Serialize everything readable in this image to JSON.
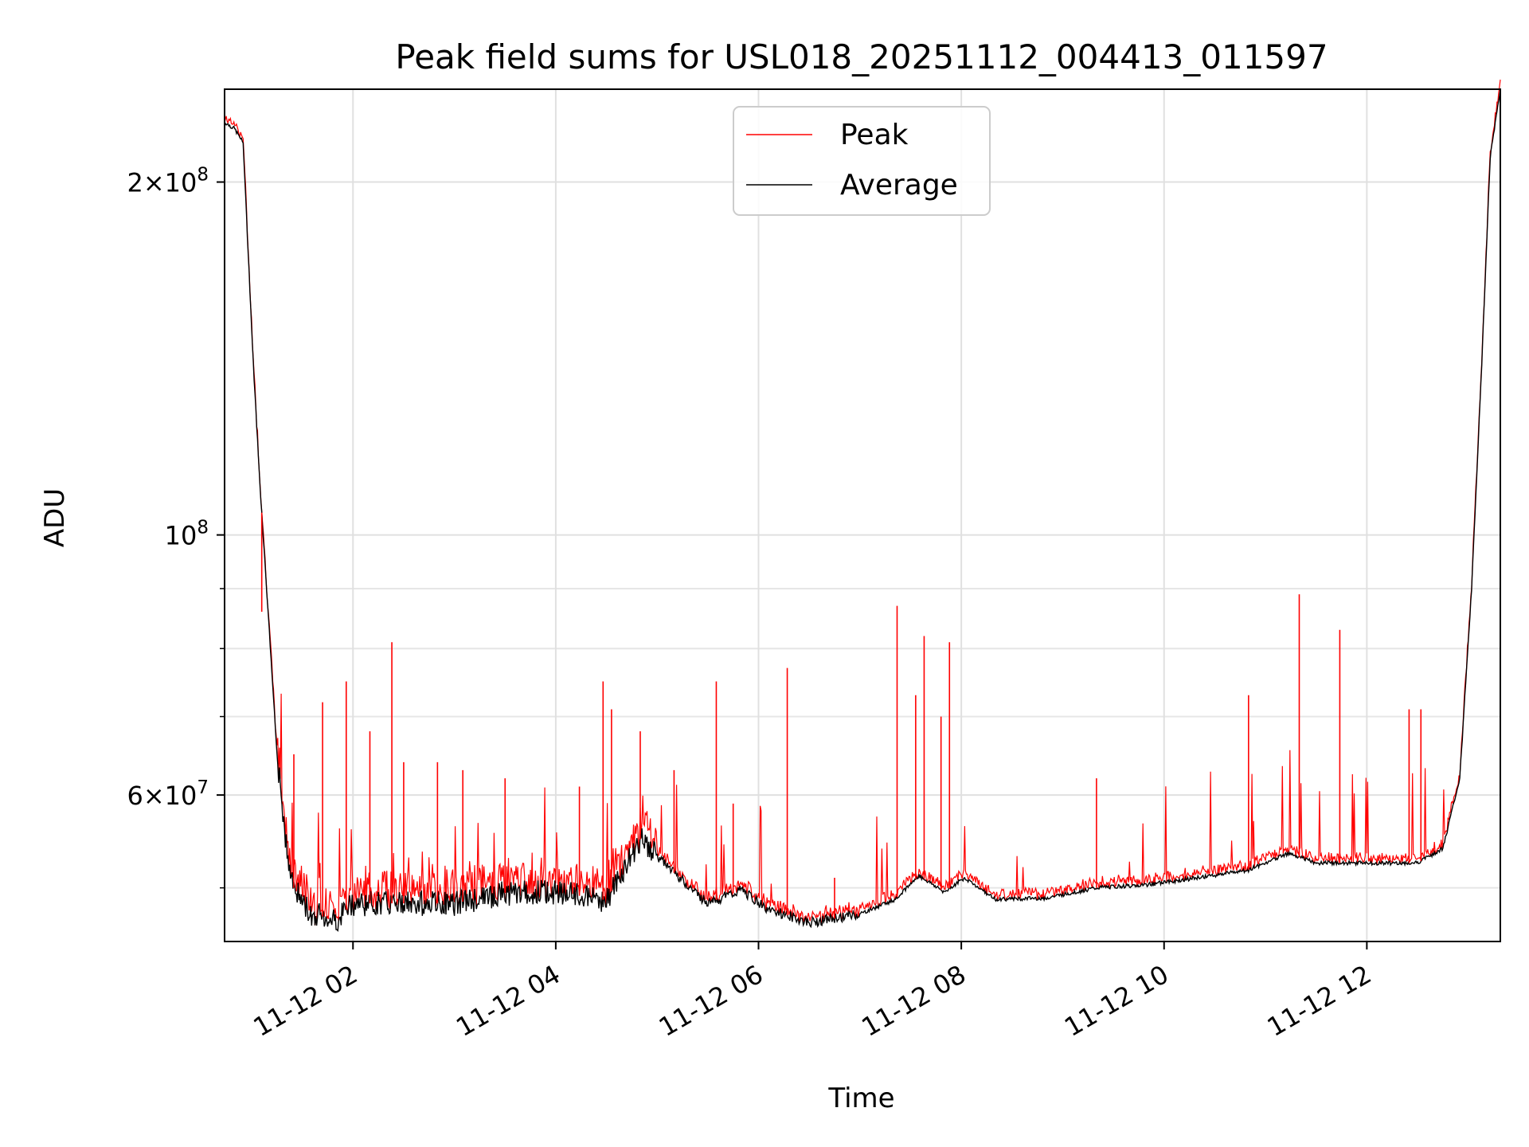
{
  "chart_data": {
    "type": "line",
    "title": "Peak field sums for USL018_20251112_004413_011597",
    "xlabel": "Time",
    "ylabel": "ADU",
    "y_scale": "log",
    "xlim": [
      "2025-11-12 00:44",
      "2025-11-12 13:19"
    ],
    "ylim": [
      45000000,
      240000000
    ],
    "x_ticks": [
      "11-12 02",
      "11-12 04",
      "11-12 06",
      "11-12 08",
      "11-12 10",
      "11-12 12"
    ],
    "y_ticks": [
      {
        "base": "2",
        "exp": "8",
        "value": 200000000
      },
      {
        "base": "",
        "exp": "8",
        "value": 100000000
      },
      {
        "base": "6",
        "exp": "7",
        "value": 60000000
      }
    ],
    "grid": true,
    "legend": {
      "position": "upper center"
    },
    "series": [
      {
        "name": "Average",
        "color": "#000000",
        "points": [
          [
            "2025-11-12 00:44",
            225000000
          ],
          [
            "2025-11-12 00:50",
            222000000
          ],
          [
            "2025-11-12 00:55",
            216000000
          ],
          [
            "2025-11-12 01:01",
            140000000
          ],
          [
            "2025-11-12 01:05",
            110000000
          ],
          [
            "2025-11-12 01:10",
            85000000
          ],
          [
            "2025-11-12 01:15",
            65000000
          ],
          [
            "2025-11-12 01:20",
            55000000
          ],
          [
            "2025-11-12 01:25",
            50000000
          ],
          [
            "2025-11-12 01:35",
            47500000
          ],
          [
            "2025-11-12 01:50",
            47000000
          ],
          [
            "2025-11-12 02:00",
            48500000
          ],
          [
            "2025-11-12 02:30",
            48500000
          ],
          [
            "2025-11-12 03:00",
            48500000
          ],
          [
            "2025-11-12 03:30",
            49500000
          ],
          [
            "2025-11-12 04:00",
            49600000
          ],
          [
            "2025-11-12 04:30",
            48800000
          ],
          [
            "2025-11-12 04:50",
            55000000
          ],
          [
            "2025-11-12 05:10",
            51500000
          ],
          [
            "2025-11-12 05:30",
            48500000
          ],
          [
            "2025-11-12 05:50",
            49800000
          ],
          [
            "2025-11-12 06:05",
            48000000
          ],
          [
            "2025-11-12 06:30",
            46700000
          ],
          [
            "2025-11-12 07:00",
            47500000
          ],
          [
            "2025-11-12 07:20",
            48800000
          ],
          [
            "2025-11-12 07:35",
            51200000
          ],
          [
            "2025-11-12 07:50",
            49600000
          ],
          [
            "2025-11-12 08:02",
            51000000
          ],
          [
            "2025-11-12 08:20",
            48900000
          ],
          [
            "2025-11-12 08:50",
            49000000
          ],
          [
            "2025-11-12 09:20",
            50000000
          ],
          [
            "2025-11-12 09:50",
            50300000
          ],
          [
            "2025-11-12 10:20",
            51000000
          ],
          [
            "2025-11-12 10:50",
            51800000
          ],
          [
            "2025-11-12 11:13",
            53500000
          ],
          [
            "2025-11-12 11:30",
            52500000
          ],
          [
            "2025-11-12 12:00",
            52500000
          ],
          [
            "2025-11-12 12:30",
            52500000
          ],
          [
            "2025-11-12 12:45",
            54000000
          ],
          [
            "2025-11-12 12:55",
            62000000
          ],
          [
            "2025-11-12 13:02",
            90000000
          ],
          [
            "2025-11-12 13:08",
            140000000
          ],
          [
            "2025-11-12 13:13",
            210000000
          ],
          [
            "2025-11-12 13:19",
            240000000
          ]
        ]
      },
      {
        "name": "Peak",
        "color": "#ff0000",
        "spikes": [
          [
            "2025-11-12 01:06",
            86000000
          ],
          [
            "2025-11-12 01:25",
            65000000
          ],
          [
            "2025-11-12 01:42",
            72000000
          ],
          [
            "2025-11-12 01:56",
            75000000
          ],
          [
            "2025-11-12 02:10",
            68000000
          ],
          [
            "2025-11-12 02:23",
            81000000
          ],
          [
            "2025-11-12 02:30",
            64000000
          ],
          [
            "2025-11-12 02:50",
            64000000
          ],
          [
            "2025-11-12 03:05",
            63000000
          ],
          [
            "2025-11-12 03:30",
            62000000
          ],
          [
            "2025-11-12 04:14",
            61000000
          ],
          [
            "2025-11-12 04:28",
            75000000
          ],
          [
            "2025-11-12 04:33",
            71000000
          ],
          [
            "2025-11-12 04:50",
            68000000
          ],
          [
            "2025-11-12 05:10",
            63000000
          ],
          [
            "2025-11-12 05:35",
            75000000
          ],
          [
            "2025-11-12 05:45",
            59000000
          ],
          [
            "2025-11-12 06:17",
            77000000
          ],
          [
            "2025-11-12 06:45",
            51000000
          ],
          [
            "2025-11-12 07:22",
            87000000
          ],
          [
            "2025-11-12 07:33",
            73000000
          ],
          [
            "2025-11-12 07:38",
            82000000
          ],
          [
            "2025-11-12 07:48",
            70000000
          ],
          [
            "2025-11-12 07:53",
            81000000
          ],
          [
            "2025-11-12 09:20",
            62000000
          ],
          [
            "2025-11-12 10:50",
            73000000
          ],
          [
            "2025-11-12 11:20",
            89000000
          ],
          [
            "2025-11-12 11:44",
            83000000
          ],
          [
            "2025-11-12 12:25",
            71000000
          ],
          [
            "2025-11-12 12:32",
            71000000
          ]
        ]
      }
    ]
  }
}
